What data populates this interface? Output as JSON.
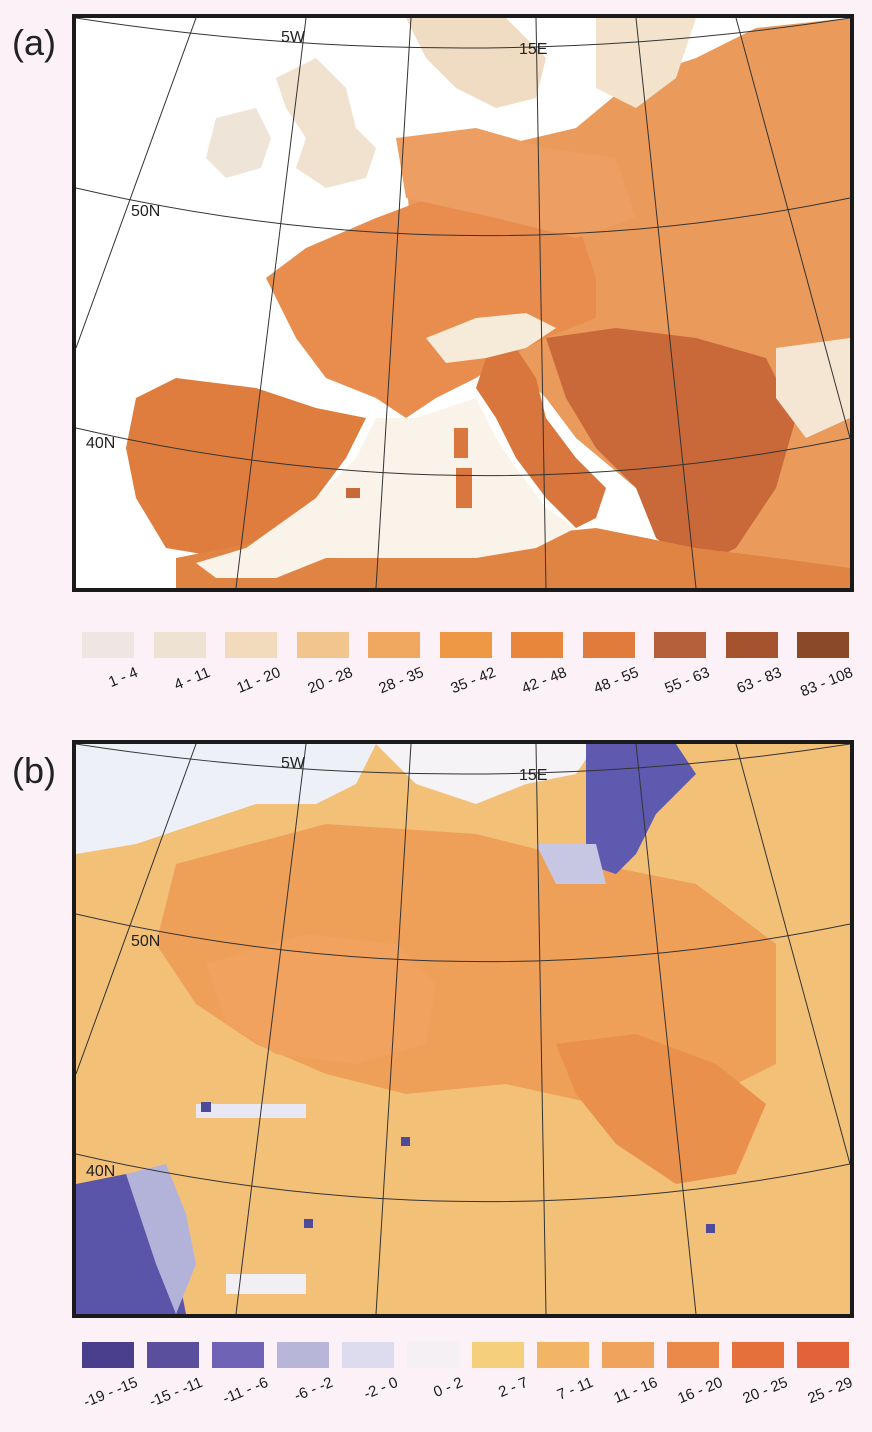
{
  "panels": [
    {
      "label": "(a)",
      "graticule_labels": {
        "lon_west": "5W",
        "lon_east": "15E",
        "lat_north": "50N",
        "lat_south": "40N"
      },
      "legend": [
        {
          "label": "1 - 4",
          "color": "#efe6e4"
        },
        {
          "label": "4 - 11",
          "color": "#eee2d2"
        },
        {
          "label": "11 - 20",
          "color": "#f1dbbc"
        },
        {
          "label": "20 - 28",
          "color": "#f2c48e"
        },
        {
          "label": "28 - 35",
          "color": "#f0a760"
        },
        {
          "label": "35 - 42",
          "color": "#ee9846"
        },
        {
          "label": "42 - 48",
          "color": "#e8863b"
        },
        {
          "label": "48 - 55",
          "color": "#e07b3c"
        },
        {
          "label": "55 - 63",
          "color": "#b5603a"
        },
        {
          "label": "63 - 83",
          "color": "#a4532e"
        },
        {
          "label": "83 - 108",
          "color": "#8a4a2a"
        }
      ]
    },
    {
      "label": "(b)",
      "graticule_labels": {
        "lon_west": "5W",
        "lon_east": "15E",
        "lat_north": "50N",
        "lat_south": "40N"
      },
      "legend": [
        {
          "label": "-19 - -15",
          "color": "#4a3f8c"
        },
        {
          "label": "-15 - -11",
          "color": "#5a4f9c"
        },
        {
          "label": "-11 - -6",
          "color": "#6e63b5"
        },
        {
          "label": "-6 - -2",
          "color": "#b7b6d8"
        },
        {
          "label": "-2 - 0",
          "color": "#dcdcee"
        },
        {
          "label": "0 - 2",
          "color": "#f4f0f4"
        },
        {
          "label": "2 - 7",
          "color": "#f5cf7c"
        },
        {
          "label": "7 - 11",
          "color": "#f2b565"
        },
        {
          "label": "11 - 16",
          "color": "#f0a35c"
        },
        {
          "label": "16 - 20",
          "color": "#eb8a48"
        },
        {
          "label": "20 - 25",
          "color": "#e6703c"
        },
        {
          "label": "25 - 29",
          "color": "#e2623a"
        }
      ]
    }
  ]
}
